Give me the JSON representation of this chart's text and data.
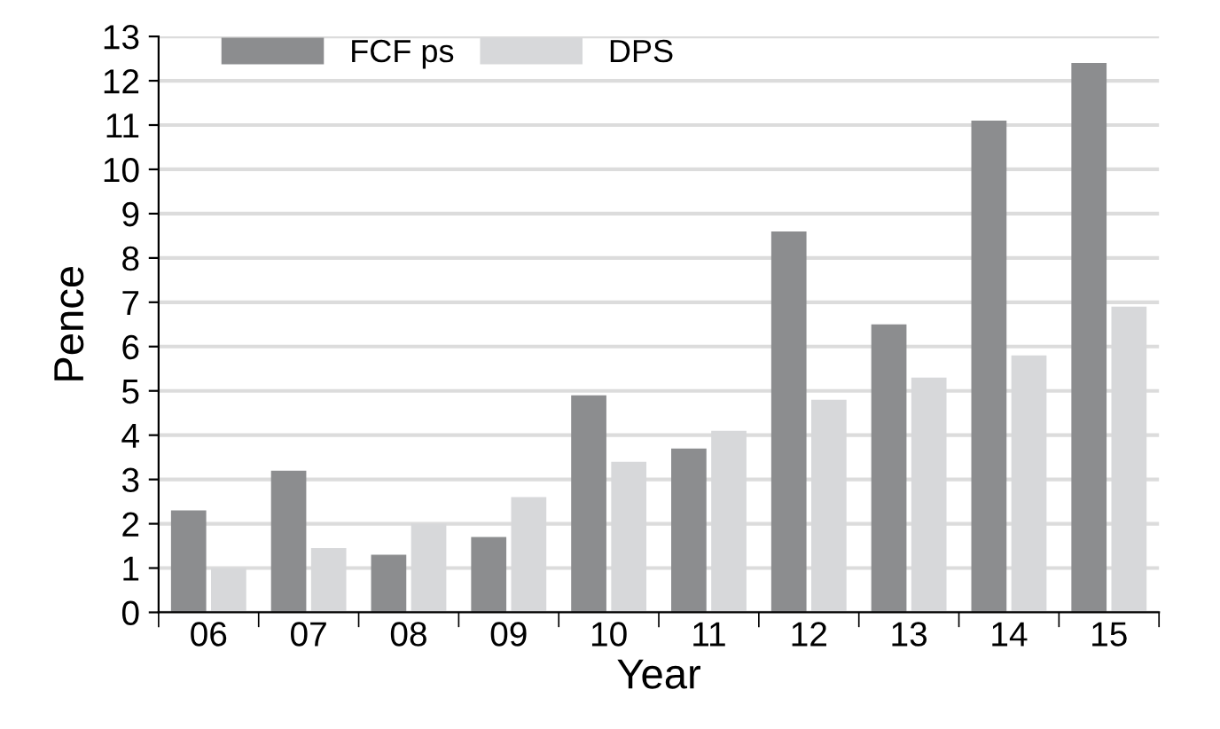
{
  "chart_data": {
    "type": "bar",
    "xlabel": "Year",
    "ylabel": "Pence",
    "categories": [
      "06",
      "07",
      "08",
      "09",
      "10",
      "11",
      "12",
      "13",
      "14",
      "15"
    ],
    "series": [
      {
        "name": "FCF ps",
        "color": "#8c8d8f",
        "values": [
          2.3,
          3.2,
          1.3,
          1.7,
          4.9,
          3.7,
          8.6,
          6.5,
          11.1,
          12.4
        ]
      },
      {
        "name": "DPS",
        "color": "#d7d8da",
        "values": [
          1.0,
          1.45,
          2.0,
          2.6,
          3.4,
          4.1,
          4.8,
          5.3,
          5.8,
          6.9
        ]
      }
    ],
    "ylim": [
      0,
      13
    ],
    "yticks": [
      0,
      1,
      2,
      3,
      4,
      5,
      6,
      7,
      8,
      9,
      10,
      11,
      12,
      13
    ],
    "grid": "y",
    "legend": "top left"
  }
}
